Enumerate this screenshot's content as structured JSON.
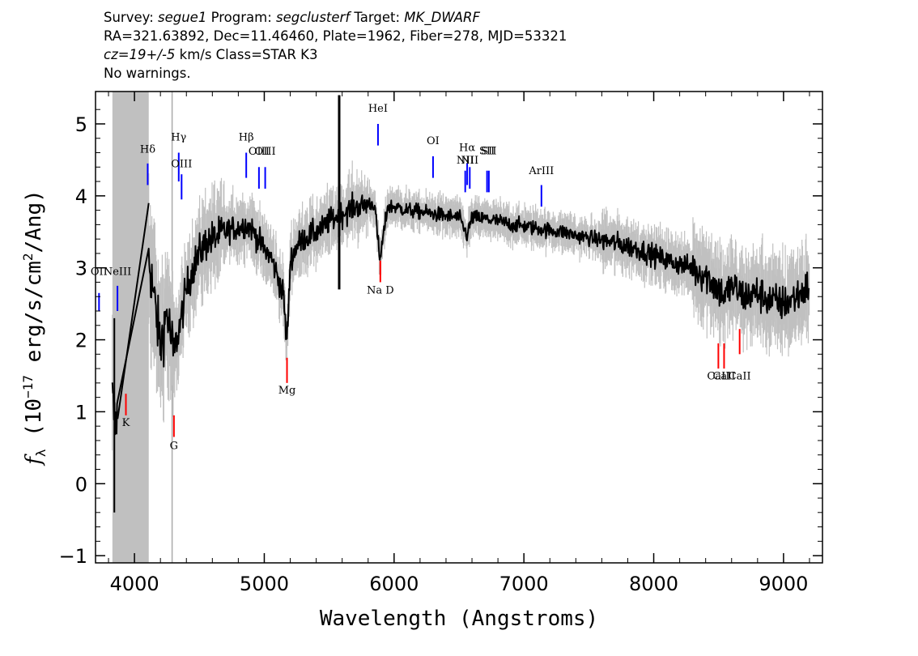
{
  "header": {
    "line1": {
      "survey_label": "Survey: ",
      "survey": "segue1",
      "program_label": " Program: ",
      "program": "segclusterf",
      "target_label": " Target: ",
      "target": "MK_DWARF"
    },
    "line2": "RA=321.63892, Dec=11.46460, Plate=1962, Fiber=278, MJD=53321",
    "line3": {
      "cz": "cz=19+/-5",
      "rest": " km/s Class=STAR K3"
    },
    "line4": "No warnings."
  },
  "colors": {
    "spectrum": "#000000",
    "error": "#c0c0c0",
    "masked_region": "#c0c0c0",
    "emission_marker": "#0000ff",
    "absorption_marker": "#ff0000"
  },
  "chart_data": {
    "type": "line",
    "xlabel": "Wavelength (Angstroms)",
    "ylabel_parts": {
      "f": "f",
      "sub": "λ",
      "open": " (10",
      "exp": "−17",
      "mid": " erg/s/cm",
      "exp2": "2",
      "close": "/Ang)"
    },
    "xlim": [
      3700,
      9300
    ],
    "ylim": [
      -1.1,
      5.45
    ],
    "x_ticks": [
      4000,
      5000,
      6000,
      7000,
      8000,
      9000
    ],
    "x_tick_labels": [
      "4000",
      "5000",
      "6000",
      "7000",
      "8000",
      "9000"
    ],
    "y_ticks": [
      -1,
      0,
      1,
      2,
      3,
      4,
      5
    ],
    "y_tick_labels": [
      "−1",
      "0",
      "1",
      "2",
      "3",
      "4",
      "5"
    ],
    "masked_region": [
      3830,
      4110
    ],
    "grey_line_x": 4290,
    "spectrum_envelope": {
      "x": [
        3830,
        3850,
        3870,
        3900,
        4000,
        4100,
        4120,
        4150,
        4200,
        4250,
        4300,
        4350,
        4400,
        4450,
        4500,
        4550,
        4600,
        4650,
        4700,
        4750,
        4800,
        4850,
        4900,
        4950,
        5000,
        5050,
        5100,
        5150,
        5170,
        5185,
        5200,
        5250,
        5300,
        5350,
        5400,
        5450,
        5500,
        5550,
        5600,
        5650,
        5700,
        5750,
        5800,
        5850,
        5890,
        5950,
        6000,
        6100,
        6200,
        6300,
        6400,
        6500,
        6563,
        6600,
        6700,
        6800,
        6900,
        7000,
        7100,
        7200,
        7300,
        7400,
        7500,
        7600,
        7700,
        7800,
        7900,
        8000,
        8100,
        8200,
        8300,
        8400,
        8500,
        8550,
        8600,
        8700,
        8800,
        8900,
        9000,
        9100,
        9200
      ],
      "y": [
        1.2,
        0.8,
        1.0,
        1.4,
        2.4,
        3.4,
        3.0,
        2.6,
        1.9,
        2.4,
        1.8,
        2.2,
        2.7,
        3.0,
        3.2,
        3.35,
        3.4,
        3.45,
        3.5,
        3.55,
        3.55,
        3.6,
        3.55,
        3.4,
        3.25,
        3.15,
        2.9,
        2.6,
        2.0,
        2.3,
        3.1,
        3.3,
        3.4,
        3.45,
        3.5,
        3.55,
        3.65,
        3.7,
        3.75,
        3.8,
        3.85,
        3.85,
        3.9,
        3.88,
        3.1,
        3.85,
        3.85,
        3.8,
        3.78,
        3.75,
        3.72,
        3.7,
        3.45,
        3.7,
        3.68,
        3.65,
        3.6,
        3.58,
        3.55,
        3.52,
        3.5,
        3.45,
        3.42,
        3.38,
        3.35,
        3.3,
        3.25,
        3.18,
        3.1,
        3.05,
        3.0,
        2.9,
        2.7,
        2.6,
        2.75,
        2.6,
        2.65,
        2.55,
        2.5,
        2.6,
        2.75
      ]
    },
    "emission_lines": [
      {
        "label": "OII",
        "x": 3727,
        "ymin": 2.4,
        "ymax": 2.65,
        "label_y": 2.9
      },
      {
        "label": "NeIII",
        "x": 3869,
        "ymin": 2.4,
        "ymax": 2.75,
        "label_y": 2.9
      },
      {
        "label": "Hδ",
        "x": 4102,
        "ymin": 4.15,
        "ymax": 4.45,
        "label_y": 4.6
      },
      {
        "label": "Hγ",
        "x": 4341,
        "ymin": 4.2,
        "ymax": 4.6,
        "label_y": 4.77
      },
      {
        "label": "OIII",
        "x": 4363,
        "ymin": 3.95,
        "ymax": 4.3,
        "label_y": 4.4
      },
      {
        "label": "Hβ",
        "x": 4861,
        "ymin": 4.25,
        "ymax": 4.6,
        "label_y": 4.77
      },
      {
        "label": "OIII",
        "x": 4959,
        "ymin": 4.1,
        "ymax": 4.4,
        "label_y": 4.57
      },
      {
        "label": "OIII",
        "x": 5007,
        "ymin": 4.1,
        "ymax": 4.4,
        "label_y": 4.57
      },
      {
        "label": "HeI",
        "x": 5876,
        "ymin": 4.7,
        "ymax": 5.0,
        "label_y": 5.17
      },
      {
        "label": "OI",
        "x": 6300,
        "ymin": 4.25,
        "ymax": 4.55,
        "label_y": 4.72
      },
      {
        "label": "NII",
        "x": 6548,
        "ymin": 4.05,
        "ymax": 4.35,
        "label_y": 4.45
      },
      {
        "label": "Hα",
        "x": 6563,
        "ymin": 4.15,
        "ymax": 4.45,
        "label_y": 4.62
      },
      {
        "label": "NII",
        "x": 6583,
        "ymin": 4.1,
        "ymax": 4.4,
        "label_y": 4.45
      },
      {
        "label": "SII",
        "x": 6716,
        "ymin": 4.05,
        "ymax": 4.35,
        "label_y": 4.58
      },
      {
        "label": "SII",
        "x": 6730,
        "ymin": 4.05,
        "ymax": 4.35,
        "label_y": 4.58
      },
      {
        "label": "ArIII",
        "x": 7135,
        "ymin": 3.85,
        "ymax": 4.15,
        "label_y": 4.3
      }
    ],
    "absorption_lines": [
      {
        "label": "K",
        "x": 3934,
        "ymin": 0.95,
        "ymax": 1.25,
        "label_y": 0.8
      },
      {
        "label": "G",
        "x": 4304,
        "ymin": 0.65,
        "ymax": 0.95,
        "label_y": 0.48
      },
      {
        "label": "Mg",
        "x": 5175,
        "ymin": 1.4,
        "ymax": 1.75,
        "label_y": 1.25
      },
      {
        "label": "Na D",
        "x": 5894,
        "ymin": 2.8,
        "ymax": 3.1,
        "label_y": 2.64
      },
      {
        "label": "CaII",
        "x": 8498,
        "ymin": 1.6,
        "ymax": 1.95,
        "label_y": 1.45
      },
      {
        "label": "CaII",
        "x": 8542,
        "ymin": 1.6,
        "ymax": 1.95,
        "label_y": 1.45
      },
      {
        "label": "CaII",
        "x": 8662,
        "ymin": 1.8,
        "ymax": 2.15,
        "label_y": 1.45
      }
    ]
  }
}
